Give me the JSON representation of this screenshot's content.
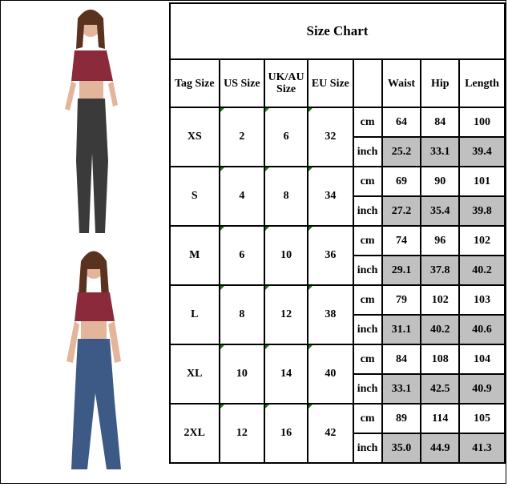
{
  "title": "Size Chart",
  "headers": {
    "tag": "Tag Size",
    "us": "US Size",
    "uk": "UK/AU Size",
    "eu": "EU Size",
    "unit": "",
    "waist": "Waist",
    "hip": "Hip",
    "length": "Length"
  },
  "units": {
    "cm": "cm",
    "inch": "inch"
  },
  "rows": [
    {
      "tag": "XS",
      "us": "2",
      "uk": "6",
      "eu": "32",
      "cm": [
        "64",
        "84",
        "100"
      ],
      "inch": [
        "25.2",
        "33.1",
        "39.4"
      ]
    },
    {
      "tag": "S",
      "us": "4",
      "uk": "8",
      "eu": "34",
      "cm": [
        "69",
        "90",
        "101"
      ],
      "inch": [
        "27.2",
        "35.4",
        "39.8"
      ]
    },
    {
      "tag": "M",
      "us": "6",
      "uk": "10",
      "eu": "36",
      "cm": [
        "74",
        "96",
        "102"
      ],
      "inch": [
        "29.1",
        "37.8",
        "40.2"
      ]
    },
    {
      "tag": "L",
      "us": "8",
      "uk": "12",
      "eu": "38",
      "cm": [
        "79",
        "102",
        "103"
      ],
      "inch": [
        "31.1",
        "40.2",
        "40.6"
      ]
    },
    {
      "tag": "XL",
      "us": "10",
      "uk": "14",
      "eu": "40",
      "cm": [
        "84",
        "108",
        "104"
      ],
      "inch": [
        "33.1",
        "42.5",
        "40.9"
      ]
    },
    {
      "tag": "2XL",
      "us": "12",
      "uk": "16",
      "eu": "42",
      "cm": [
        "89",
        "114",
        "105"
      ],
      "inch": [
        "35.0",
        "44.9",
        "41.3"
      ]
    }
  ],
  "colors": {
    "inch_fill": "#c0c0c0",
    "top": "#8b2a3a",
    "jeans_dark": "#3a3a3a",
    "jeans_blue": "#3d5a86"
  }
}
